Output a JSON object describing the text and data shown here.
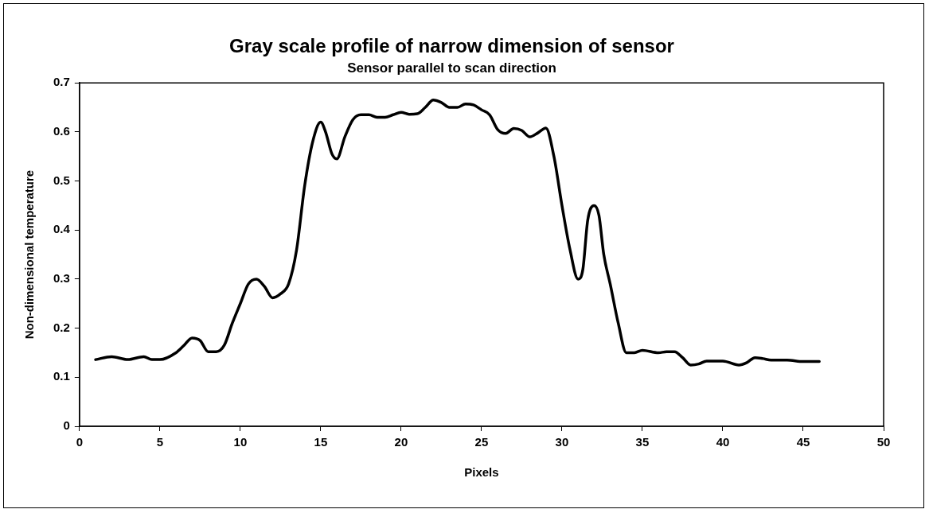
{
  "chart_data": {
    "type": "line",
    "title": "Gray scale profile of narrow dimension of sensor",
    "subtitle": "Sensor parallel to scan direction",
    "xlabel": "Pixels",
    "ylabel": "Non-dimensional temperature",
    "x": [
      1,
      2,
      3,
      4,
      4.5,
      5,
      6,
      6.5,
      7,
      7.5,
      8,
      8.5,
      9,
      9.5,
      10,
      10.5,
      11,
      11.5,
      12,
      12.5,
      13,
      13.5,
      14,
      14.5,
      15,
      15.3,
      15.7,
      16,
      16.5,
      17,
      17.5,
      18,
      18.5,
      19,
      19.5,
      20,
      20.5,
      21,
      21.5,
      22,
      22.5,
      23,
      23.5,
      24,
      24.5,
      25,
      25.5,
      26,
      26.5,
      27,
      27.5,
      28,
      28.5,
      29,
      29.5,
      30,
      30.5,
      31,
      31.3,
      31.6,
      32,
      32.3,
      32.6,
      33,
      33.5,
      34,
      34.5,
      35,
      36,
      36.5,
      37,
      37.5,
      38,
      38.5,
      39,
      40,
      41,
      41.5,
      42,
      42.5,
      43,
      44,
      45,
      46
    ],
    "series": [
      {
        "color": "#000000",
        "values": [
          0.136,
          0.142,
          0.136,
          0.142,
          0.136,
          0.136,
          0.15,
          0.165,
          0.18,
          0.175,
          0.152,
          0.152,
          0.165,
          0.21,
          0.25,
          0.29,
          0.3,
          0.285,
          0.262,
          0.27,
          0.29,
          0.36,
          0.49,
          0.58,
          0.62,
          0.6,
          0.555,
          0.545,
          0.59,
          0.625,
          0.635,
          0.635,
          0.63,
          0.63,
          0.635,
          0.64,
          0.636,
          0.637,
          0.65,
          0.665,
          0.66,
          0.65,
          0.65,
          0.657,
          0.655,
          0.645,
          0.635,
          0.605,
          0.597,
          0.607,
          0.603,
          0.59,
          0.598,
          0.608,
          0.55,
          0.45,
          0.36,
          0.3,
          0.32,
          0.42,
          0.45,
          0.43,
          0.35,
          0.29,
          0.21,
          0.15,
          0.15,
          0.155,
          0.15,
          0.152,
          0.152,
          0.14,
          0.125,
          0.127,
          0.133,
          0.133,
          0.125,
          0.13,
          0.14,
          0.138,
          0.135,
          0.135,
          0.132,
          0.132
        ]
      }
    ],
    "xlim": [
      0,
      50
    ],
    "xticks": [
      0,
      5,
      10,
      15,
      20,
      25,
      30,
      35,
      40,
      45,
      50
    ],
    "ylim": [
      0,
      0.7
    ],
    "yticks": [
      0,
      0.1,
      0.2,
      0.3,
      0.4,
      0.5,
      0.6,
      0.7
    ],
    "grid": false,
    "legend": false,
    "marker": "none",
    "line_style": "solid"
  }
}
